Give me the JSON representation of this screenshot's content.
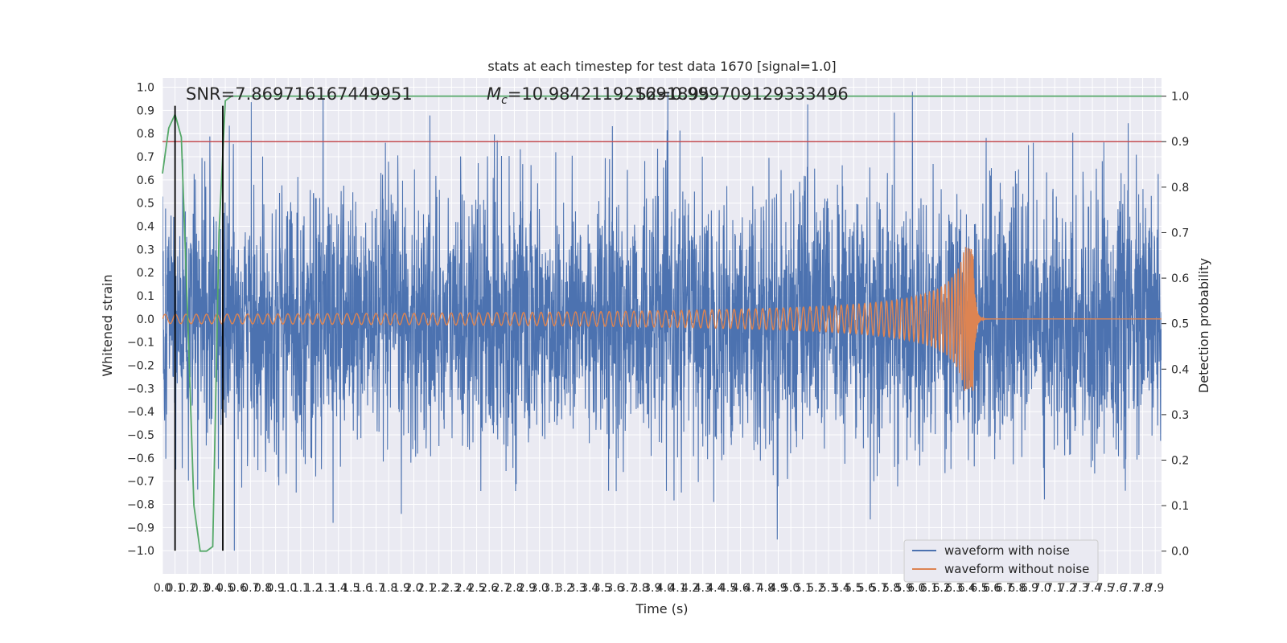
{
  "chart_data": {
    "type": "line",
    "title": "stats at each timestep for test data 1670 [signal=1.0]",
    "xlabel": "Time (s)",
    "ylabel": "Whitened strain",
    "y2label": "Detection probability",
    "xlim": [
      0.0,
      7.95
    ],
    "ylim": [
      -1.1,
      1.04
    ],
    "y2lim": [
      -0.05,
      1.04
    ],
    "x_ticks": [
      "0.0",
      "0.1",
      "0.2",
      "0.3",
      "0.4",
      "0.5",
      "0.6",
      "0.7",
      "0.8",
      "0.9",
      "1.0",
      "1.1",
      "1.2",
      "1.3",
      "1.4",
      "1.5",
      "1.6",
      "1.7",
      "1.8",
      "1.9",
      "2.0",
      "2.1",
      "2.2",
      "2.3",
      "2.4",
      "2.5",
      "2.6",
      "2.7",
      "2.8",
      "2.9",
      "3.0",
      "3.1",
      "3.2",
      "3.3",
      "3.4",
      "3.5",
      "3.6",
      "3.7",
      "3.8",
      "3.9",
      "4.0",
      "4.1",
      "4.2",
      "4.3",
      "4.4",
      "4.5",
      "4.6",
      "4.7",
      "4.8",
      "4.9",
      "5.0",
      "5.1",
      "5.2",
      "5.3",
      "5.4",
      "5.5",
      "5.6",
      "5.7",
      "5.8",
      "5.9",
      "6.0",
      "6.1",
      "6.2",
      "6.3",
      "6.4",
      "6.5",
      "6.6",
      "6.7",
      "6.8",
      "6.9",
      "7.0",
      "7.1",
      "7.2",
      "7.3",
      "7.4",
      "7.5",
      "7.6",
      "7.7",
      "7.8",
      "7.9"
    ],
    "y_ticks": [
      "1.0",
      "0.9",
      "0.8",
      "0.7",
      "0.6",
      "0.5",
      "0.4",
      "0.3",
      "0.2",
      "0.1",
      "0.0",
      "−0.1",
      "−0.2",
      "−0.3",
      "−0.4",
      "−0.5",
      "−0.6",
      "−0.7",
      "−0.8",
      "−0.9",
      "−1.0"
    ],
    "y2_ticks": [
      "1.0",
      "0.9",
      "0.8",
      "0.7",
      "0.6",
      "0.5",
      "0.4",
      "0.3",
      "0.2",
      "0.1",
      "0.0"
    ],
    "annotations": {
      "snr": "SNR=7.869716167449951",
      "mc": "=10.984211921691895",
      "mc_symbol": "M",
      "mc_sub": "c",
      "s2": "S2=0.999709129333496"
    },
    "legend": {
      "location": "lower right",
      "entries": [
        "waveform with noise",
        "waveform without noise"
      ]
    },
    "colors": {
      "noise": "#4c72b0",
      "clean": "#dd8452",
      "probability": "#55a868",
      "threshold": "#c44e52",
      "markers": "#000000",
      "grid_bg": "#eaeaf2"
    },
    "series": [
      {
        "name": "waveform with noise",
        "kind": "noise",
        "amplitude_envelope": 0.28,
        "x_range": [
          0.0,
          7.95
        ]
      },
      {
        "name": "waveform without noise",
        "kind": "chirp",
        "merger_time": 6.45,
        "peak_upper": 0.31,
        "peak_lower": -0.29,
        "early_amplitude": 0.02,
        "post_merger_value": 0.0
      },
      {
        "name": "detection probability",
        "axis": "right",
        "x": [
          0.0,
          0.05,
          0.1,
          0.15,
          0.2,
          0.25,
          0.3,
          0.35,
          0.4,
          0.45,
          0.5,
          0.55,
          7.95
        ],
        "values": [
          0.83,
          0.93,
          0.96,
          0.91,
          0.52,
          0.1,
          0.0,
          0.0,
          0.01,
          0.7,
          0.99,
          1.0,
          1.0
        ]
      },
      {
        "name": "threshold",
        "axis": "right",
        "value": 0.9
      }
    ],
    "vertical_markers": [
      0.1,
      0.48
    ]
  }
}
